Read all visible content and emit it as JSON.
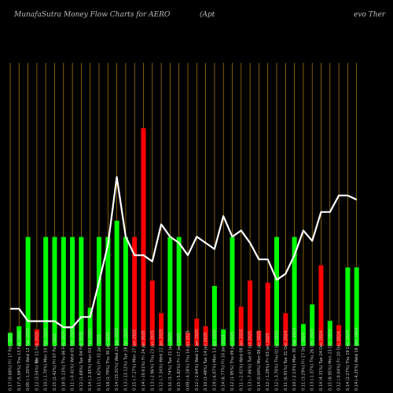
{
  "chart_data": {
    "type": "bar",
    "title": "MunafaSutra Money Flow Charts for AERO",
    "title_suffix": "(Apt",
    "title_right": "evo Ther",
    "ylabel": "$",
    "grid": true,
    "colors": {
      "up": "#00ff00",
      "down": "#ff0000",
      "line": "#ffffff",
      "grid": "#b8860b",
      "background": "#000000"
    },
    "categories": [
      "Fri 17 Feb 2025",
      "Thu 13 Feb 2025",
      "Wed 12 Feb 2025",
      "Tue 11 Feb 2025",
      "Mon 10 Feb 2025",
      "Fri 07 Feb 2025",
      "Thu 06 Feb 2025",
      "Wed 05 Feb 2025",
      "Tue 04 Feb 2025",
      "Mon 03 Feb 2025",
      "Fri 31 Jan 2025",
      "Thu 30 Jan 2025",
      "Wed 29 Jan 2025",
      "Tue 28 Jan 2025",
      "Mon 27 Jan 2025",
      "Fri 24 Jan 2025",
      "Thu 23 Jan 2025",
      "Wed 22 Jan 2025",
      "Tue 21 Jan 2025",
      "Fri 17 Jan 2025",
      "Thu 16 Jan 2025",
      "Wed 15 Jan 2025",
      "Tue 14 Jan 2025",
      "Mon 13 Jan 2025",
      "Fri 10 Jan 2025",
      "Thu 09 Jan 2025",
      "Wed 08 Jan 2025",
      "Tue 07 Jan 2025",
      "Mon 06 Jan 2025",
      "Fri 03 Jan 2025",
      "Thu 02 Jan 2025",
      "Tue 31 Dec 2024",
      "Mon 30 Dec 2024",
      "Fri 27 Dec 2024",
      "Thu 26 Dec 2024",
      "Tue 24 Dec 2024",
      "Mon 23 Dec 2024",
      "Fri 20 Dec 2024",
      "Thu 19 Dec 2024",
      "Wed 18 Dec 2024"
    ],
    "tick_labels": [
      "0.17 (0.68%)",
      "0.17 (5.04%)",
      "0.05 (-1.20%)",
      "0.12 (3.54%)",
      "0.10 (-1.70%)",
      "0.15 (2.42%)",
      "0.18 (5.13%)",
      "0.11 (-0.41%)",
      "0.12 (1.68%)",
      "0.14 (-2.65%)",
      "0.11 (1.62%)",
      "0.18 (2.79%)",
      "0.14 (15.01%)",
      "0.13 (-13.12%)",
      "0.15 (-7.27%)",
      "0.14 (-10.61%)",
      "0.13 (-2.96%)",
      "0.12 (-7.34%)",
      "0.16 (3.74%)",
      "0.15 (-5.82%)",
      "0.09 (-4.18%)",
      "0.12 (-2.64%)",
      "0.10 (3.48%)",
      "0.19 (-6.07%)",
      "0.14 (6.77%)",
      "0.12 (1.95%)",
      "0.11 (-2.01%)",
      "0.13 (-7.06%)",
      "0.14 (0.00%)",
      "0.12 (-1.29%)",
      "0.12 (-3.70%)",
      "0.11 (6.91%)",
      "0.10 (-2.13%)",
      "0.11 (3.29%)",
      "0.13 (-1.37%)",
      "0.14 (4.31%)",
      "0.15 (8.95%)",
      "0.12 (-0.04%)",
      "0.14 (2.27%)",
      "0.14 (-4.25%)"
    ],
    "series": [
      {
        "values": [
          12,
          18,
          100,
          15,
          100,
          100,
          100,
          100,
          100,
          35,
          100,
          100,
          115,
          100,
          100,
          200,
          60,
          30,
          100,
          100,
          12,
          25,
          18,
          55,
          15,
          100,
          36,
          60,
          14,
          58,
          100,
          30,
          100,
          20,
          38,
          74,
          23,
          19,
          72,
          72
        ],
        "direction": [
          "up",
          "up",
          "up",
          "down",
          "up",
          "up",
          "up",
          "up",
          "up",
          "up",
          "up",
          "up",
          "up",
          "up",
          "down",
          "down",
          "down",
          "down",
          "up",
          "up",
          "down",
          "down",
          "down",
          "up",
          "up",
          "up",
          "down",
          "down",
          "down",
          "down",
          "up",
          "down",
          "up",
          "up",
          "up",
          "down",
          "up",
          "down",
          "up",
          "up"
        ]
      },
      {
        "values": [
          18,
          18,
          12,
          12,
          12,
          12,
          9,
          9,
          14,
          14,
          31,
          49,
          82,
          53,
          44,
          44,
          41,
          59,
          53,
          50,
          44,
          53,
          50,
          47,
          63,
          53,
          56,
          50,
          42,
          42,
          32,
          35,
          44,
          56,
          51,
          65,
          65,
          73,
          73,
          71
        ]
      }
    ],
    "ylim": [
      0,
      260
    ],
    "line_ylim": [
      0,
      100
    ]
  }
}
